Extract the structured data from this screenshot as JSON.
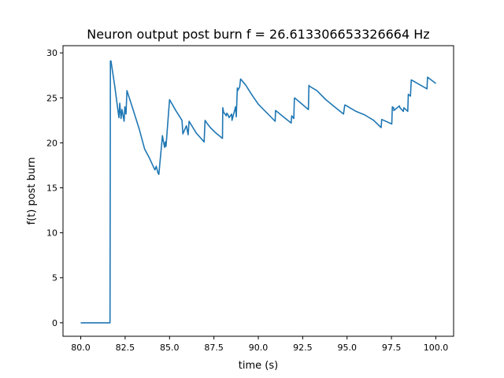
{
  "chart_data": {
    "type": "line",
    "title": "Neuron output post burn f = 26.613306653326664 Hz",
    "xlabel": "time (s)",
    "ylabel": "f(t) post burn",
    "xlim": [
      79.0,
      101.0
    ],
    "ylim": [
      -1.5,
      30.8
    ],
    "xticks": [
      80.0,
      82.5,
      85.0,
      87.5,
      90.0,
      92.5,
      95.0,
      97.5,
      100.0
    ],
    "xtick_labels": [
      "80.0",
      "82.5",
      "85.0",
      "87.5",
      "90.0",
      "92.5",
      "95.0",
      "97.5",
      "100.0"
    ],
    "yticks": [
      0,
      5,
      10,
      15,
      20,
      25,
      30
    ],
    "ytick_labels": [
      "0",
      "5",
      "10",
      "15",
      "20",
      "25",
      "30"
    ],
    "grid": false,
    "series": [
      {
        "color": "#1f77b4",
        "x": [
          80.0,
          81.65,
          81.67,
          81.7,
          81.9,
          82.15,
          82.2,
          82.27,
          82.32,
          82.44,
          82.48,
          82.55,
          82.6,
          82.9,
          83.3,
          83.6,
          83.85,
          84.1,
          84.18,
          84.25,
          84.36,
          84.4,
          84.6,
          84.65,
          84.72,
          84.76,
          84.8,
          85.0,
          85.35,
          85.7,
          85.75,
          85.95,
          86.05,
          86.1,
          86.5,
          86.95,
          87.0,
          87.1,
          87.3,
          87.55,
          87.98,
          88.0,
          88.05,
          88.2,
          88.22,
          88.3,
          88.35,
          88.5,
          88.52,
          88.72,
          88.76,
          88.82,
          88.84,
          88.95,
          89.0,
          89.3,
          89.65,
          90.0,
          90.95,
          90.97,
          91.85,
          91.88,
          92.0,
          92.03,
          92.05,
          92.82,
          92.85,
          92.88,
          93.3,
          93.8,
          94.3,
          94.8,
          94.87,
          94.9,
          95.5,
          96.0,
          96.5,
          96.92,
          96.95,
          97.52,
          97.55,
          97.62,
          97.64,
          97.95,
          97.98,
          98.17,
          98.2,
          98.42,
          98.45,
          98.57,
          98.62,
          99.5,
          99.53,
          100.0
        ],
        "y": [
          0,
          0,
          29.1,
          29.1,
          26.5,
          22.8,
          24.4,
          22.7,
          23.7,
          22.4,
          24.0,
          23.2,
          25.8,
          24.0,
          21.5,
          19.3,
          18.4,
          17.3,
          17.0,
          17.4,
          16.6,
          16.5,
          20.8,
          20.2,
          19.5,
          20.1,
          19.6,
          24.8,
          23.6,
          22.5,
          21.0,
          21.9,
          20.9,
          22.4,
          21.1,
          20.1,
          22.5,
          22.2,
          21.7,
          21.2,
          20.5,
          23.9,
          23.4,
          23.0,
          23.3,
          23.1,
          22.8,
          23.2,
          22.5,
          24.0,
          22.9,
          26.1,
          25.8,
          26.2,
          27.1,
          26.4,
          25.3,
          24.3,
          22.4,
          23.6,
          22.2,
          23.0,
          22.7,
          24.9,
          25.0,
          23.7,
          26.4,
          26.3,
          25.8,
          24.8,
          24.0,
          23.2,
          24.2,
          24.2,
          23.5,
          23.1,
          22.5,
          21.7,
          22.6,
          22.1,
          24.0,
          23.9,
          23.6,
          24.1,
          23.9,
          23.5,
          23.9,
          23.5,
          25.4,
          25.2,
          27.0,
          26.0,
          27.3,
          26.6
        ]
      }
    ]
  }
}
